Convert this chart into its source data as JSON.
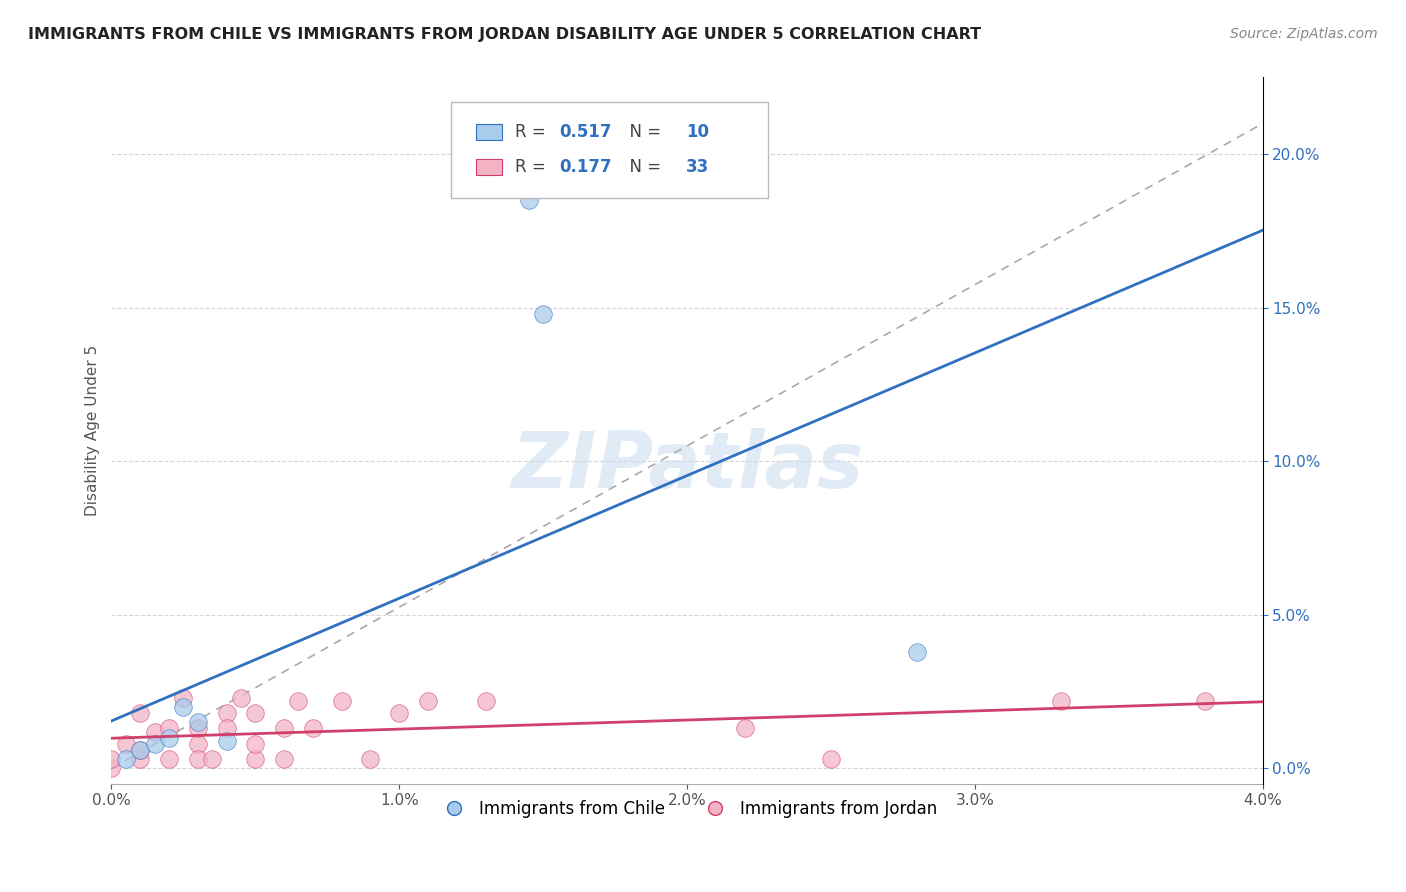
{
  "title": "IMMIGRANTS FROM CHILE VS IMMIGRANTS FROM JORDAN DISABILITY AGE UNDER 5 CORRELATION CHART",
  "source": "Source: ZipAtlas.com",
  "ylabel": "Disability Age Under 5",
  "r_chile": 0.517,
  "n_chile": 10,
  "r_jordan": 0.177,
  "n_jordan": 33,
  "xlim": [
    0.0,
    0.04
  ],
  "ylim": [
    -0.005,
    0.225
  ],
  "xticks": [
    0.0,
    0.01,
    0.02,
    0.03,
    0.04
  ],
  "yticks_right": [
    0.0,
    0.05,
    0.1,
    0.15,
    0.2
  ],
  "color_chile": "#A8CCEA",
  "color_jordan": "#F2B3C5",
  "line_color_chile": "#3070C0",
  "line_color_jordan": "#D0406A",
  "watermark": "ZIPatlas",
  "chile_x": [
    0.0005,
    0.001,
    0.0015,
    0.002,
    0.0025,
    0.003,
    0.004,
    0.0145,
    0.015,
    0.028
  ],
  "chile_y": [
    0.003,
    0.006,
    0.008,
    0.01,
    0.02,
    0.015,
    0.009,
    0.185,
    0.148,
    0.038
  ],
  "jordan_x": [
    0.0,
    0.0,
    0.0005,
    0.001,
    0.001,
    0.001,
    0.0015,
    0.002,
    0.002,
    0.0025,
    0.003,
    0.003,
    0.003,
    0.0035,
    0.004,
    0.004,
    0.0045,
    0.005,
    0.005,
    0.005,
    0.006,
    0.006,
    0.0065,
    0.007,
    0.008,
    0.009,
    0.01,
    0.011,
    0.013,
    0.022,
    0.025,
    0.033,
    0.038
  ],
  "jordan_y": [
    0.0,
    0.003,
    0.008,
    0.018,
    0.003,
    0.006,
    0.012,
    0.003,
    0.013,
    0.023,
    0.008,
    0.003,
    0.013,
    0.003,
    0.018,
    0.013,
    0.023,
    0.003,
    0.008,
    0.018,
    0.003,
    0.013,
    0.022,
    0.013,
    0.022,
    0.003,
    0.018,
    0.022,
    0.022,
    0.013,
    0.003,
    0.022,
    0.022
  ],
  "background_color": "#FFFFFF",
  "grid_color": "#CCCCCC",
  "legend_text_color": "#444444",
  "legend_value_color": "#3070C0",
  "legend_n_color": "#3070C0"
}
